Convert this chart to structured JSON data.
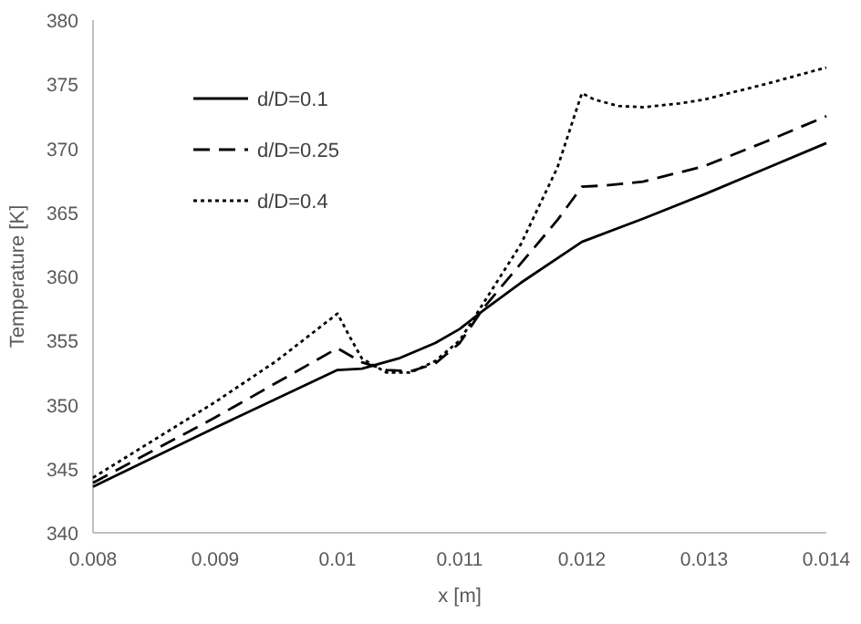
{
  "chart_data": {
    "type": "line",
    "xlabel": "x [m]",
    "ylabel": "Temperature [K]",
    "xlim": [
      0.008,
      0.014
    ],
    "xticks": [
      {
        "value": 0.008,
        "label": "0.008"
      },
      {
        "value": 0.009,
        "label": "0.009"
      },
      {
        "value": 0.01,
        "label": "0.01"
      },
      {
        "value": 0.011,
        "label": "0.011"
      },
      {
        "value": 0.012,
        "label": "0.012"
      },
      {
        "value": 0.013,
        "label": "0.013"
      },
      {
        "value": 0.014,
        "label": "0.014"
      }
    ],
    "ylim": [
      340,
      380
    ],
    "yticks": [
      340,
      345,
      350,
      355,
      360,
      365,
      370,
      375,
      380
    ],
    "grid": false,
    "legend": "top left",
    "series": [
      {
        "name": "d/D=0.1",
        "color": "#000000",
        "line_style": "solid",
        "x": [
          0.008,
          0.009,
          0.01,
          0.0102,
          0.0105,
          0.0108,
          0.011,
          0.0112,
          0.0115,
          0.012,
          0.0125,
          0.013,
          0.0135,
          0.014
        ],
        "values": [
          343.6,
          348.2,
          352.7,
          352.8,
          353.6,
          354.8,
          355.9,
          357.4,
          359.5,
          362.7,
          364.5,
          366.4,
          368.4,
          370.4
        ]
      },
      {
        "name": "d/D=0.25",
        "color": "#000000",
        "line_style": "dashed",
        "x": [
          0.008,
          0.009,
          0.01,
          0.0102,
          0.0104,
          0.0106,
          0.0108,
          0.011,
          0.0112,
          0.0115,
          0.0118,
          0.012,
          0.0122,
          0.0125,
          0.013,
          0.0135,
          0.014
        ],
        "values": [
          343.9,
          349.0,
          354.4,
          353.3,
          352.7,
          352.6,
          353.2,
          354.8,
          357.6,
          361.0,
          364.4,
          367.0,
          367.1,
          367.4,
          368.6,
          370.5,
          372.5
        ]
      },
      {
        "name": "d/D=0.4",
        "color": "#000000",
        "line_style": "dotted",
        "x": [
          0.008,
          0.009,
          0.0095,
          0.01,
          0.0101,
          0.0102,
          0.0104,
          0.0106,
          0.0108,
          0.011,
          0.0112,
          0.0115,
          0.0118,
          0.012,
          0.0121,
          0.0123,
          0.0125,
          0.0128,
          0.013,
          0.0135,
          0.014
        ],
        "values": [
          344.3,
          350.2,
          353.4,
          357.1,
          355.3,
          353.6,
          352.5,
          352.5,
          353.4,
          355.0,
          358.0,
          362.5,
          368.5,
          374.3,
          373.8,
          373.3,
          373.2,
          373.5,
          373.8,
          375.0,
          376.3
        ]
      }
    ]
  }
}
